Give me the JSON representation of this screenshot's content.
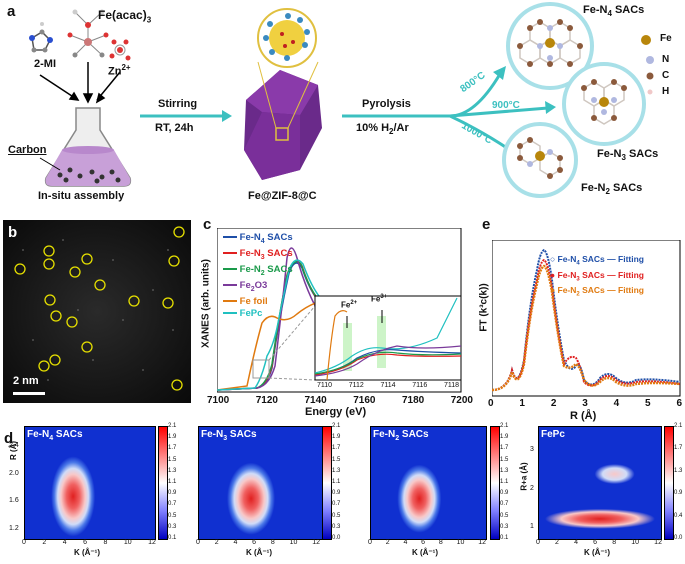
{
  "panel_a": {
    "letter": "a",
    "fe_acac": "Fe(acac)",
    "fe_acac_sub": "3",
    "mi": "2-MI",
    "zn": "Zn",
    "zn_sup": "2+",
    "carbon": "Carbon",
    "insitu": "In-situ assembly",
    "stirring": "Stirring",
    "rt": "RT, 24h",
    "zif": "Fe@ZIF-8@C",
    "pyrolysis": "Pyrolysis",
    "gas": "10% H",
    "gas_sub": "2",
    "gas_tail": "/Ar",
    "t800": "800°C",
    "t900": "900°C",
    "t1000": "1000°C",
    "fen4": "Fe-N",
    "fen4_sub": "4",
    "fen4_tail": " SACs",
    "fen3": "Fe-N",
    "fen3_sub": "3",
    "fen3_tail": " SACs",
    "fen2": "Fe-N",
    "fen2_sub": "2",
    "fen2_tail": " SACs",
    "legend": [
      "Fe",
      "N",
      "C",
      "H"
    ],
    "colors": {
      "fe": "#b8860b",
      "n": "#b0b8e0",
      "c": "#8b5a3c",
      "h": "#f0c8c8",
      "arrow": "#3cc0c0"
    }
  },
  "panel_b": {
    "letter": "b",
    "scale": "2 nm"
  },
  "panel_c": {
    "letter": "c",
    "ylabel": "XANES (arb. units)",
    "xlabel": "Energy (eV)",
    "xticks": [
      "7100",
      "7120",
      "7140",
      "7160",
      "7180",
      "7200"
    ],
    "legend": [
      {
        "name": "Fe-N",
        "sub": "4",
        "tail": " SACs",
        "color": "#1f4fa8"
      },
      {
        "name": "Fe-N",
        "sub": "3",
        "tail": " SACs",
        "color": "#e02020"
      },
      {
        "name": "Fe-N",
        "sub": "2",
        "tail": " SACs",
        "color": "#1a9a4a"
      },
      {
        "name": "Fe",
        "sub": "2",
        "tail": "O3",
        "color": "#7a3a9a"
      },
      {
        "name": "Fe foil",
        "sub": "",
        "tail": "",
        "color": "#e07a10"
      },
      {
        "name": "FePc",
        "sub": "",
        "tail": "",
        "color": "#20c0c0"
      }
    ],
    "inset_xticks": [
      "7110",
      "7112",
      "7114",
      "7116",
      "7118"
    ],
    "fe2": "Fe",
    "fe2_sup": "2+",
    "fe3": "Fe",
    "fe3_sup": "3+"
  },
  "panel_e": {
    "letter": "e",
    "ylabel": "FT (k³c(k))",
    "xlabel": "R (Å)",
    "xticks": [
      "0",
      "1",
      "2",
      "3",
      "4",
      "5",
      "6"
    ],
    "legend": [
      {
        "name": "Fe-N",
        "sub": "4",
        "tail": " SACs",
        "fit": "Fitting",
        "color": "#1f4fa8"
      },
      {
        "name": "Fe-N",
        "sub": "3",
        "tail": " SACs",
        "fit": "Fitting",
        "color": "#e02020"
      },
      {
        "name": "Fe-N",
        "sub": "2",
        "tail": " SACs",
        "fit": "Fitting",
        "color": "#e07a10"
      }
    ]
  },
  "panel_d": {
    "letter": "d",
    "maps": [
      {
        "title": "Fe-N",
        "sub": "4",
        "tail": " SACs",
        "ylabel": "R (Å)",
        "xlabel": "K (Å⁻¹)",
        "cbar": [
          "2.1",
          "1.9",
          "1.7",
          "1.5",
          "1.3",
          "1.1",
          "0.9",
          "0.7",
          "0.5",
          "0.3",
          "0.1"
        ]
      },
      {
        "title": "Fe-N",
        "sub": "3",
        "tail": " SACs",
        "ylabel": "R (Å)",
        "xlabel": "K (Å⁻¹)",
        "cbar": [
          "2.1",
          "1.9",
          "1.7",
          "1.5",
          "1.3",
          "1.1",
          "0.9",
          "0.7",
          "0.5",
          "0.3",
          "0.0"
        ]
      },
      {
        "title": "Fe-N",
        "sub": "2",
        "tail": " SACs",
        "ylabel": "R (Å)",
        "xlabel": "K (Å⁻¹)",
        "cbar": [
          "2.1",
          "1.9",
          "1.7",
          "1.5",
          "1.3",
          "1.1",
          "0.9",
          "0.7",
          "0.5",
          "0.3",
          "0.1"
        ]
      },
      {
        "title": "FePc",
        "sub": "",
        "tail": "",
        "ylabel": "R+a (Å)",
        "xlabel": "K (Å⁻¹)",
        "cbar": [
          "2.1",
          "1.7",
          "1.3",
          "0.9",
          "0.4",
          "0.0"
        ]
      }
    ],
    "yticks": [
      "2.4",
      "2.0",
      "1.6",
      "1.2"
    ],
    "yticks4": [
      "3",
      "2",
      "1"
    ],
    "xticks": [
      "0",
      "2",
      "4",
      "6",
      "8",
      "10",
      "12"
    ]
  }
}
